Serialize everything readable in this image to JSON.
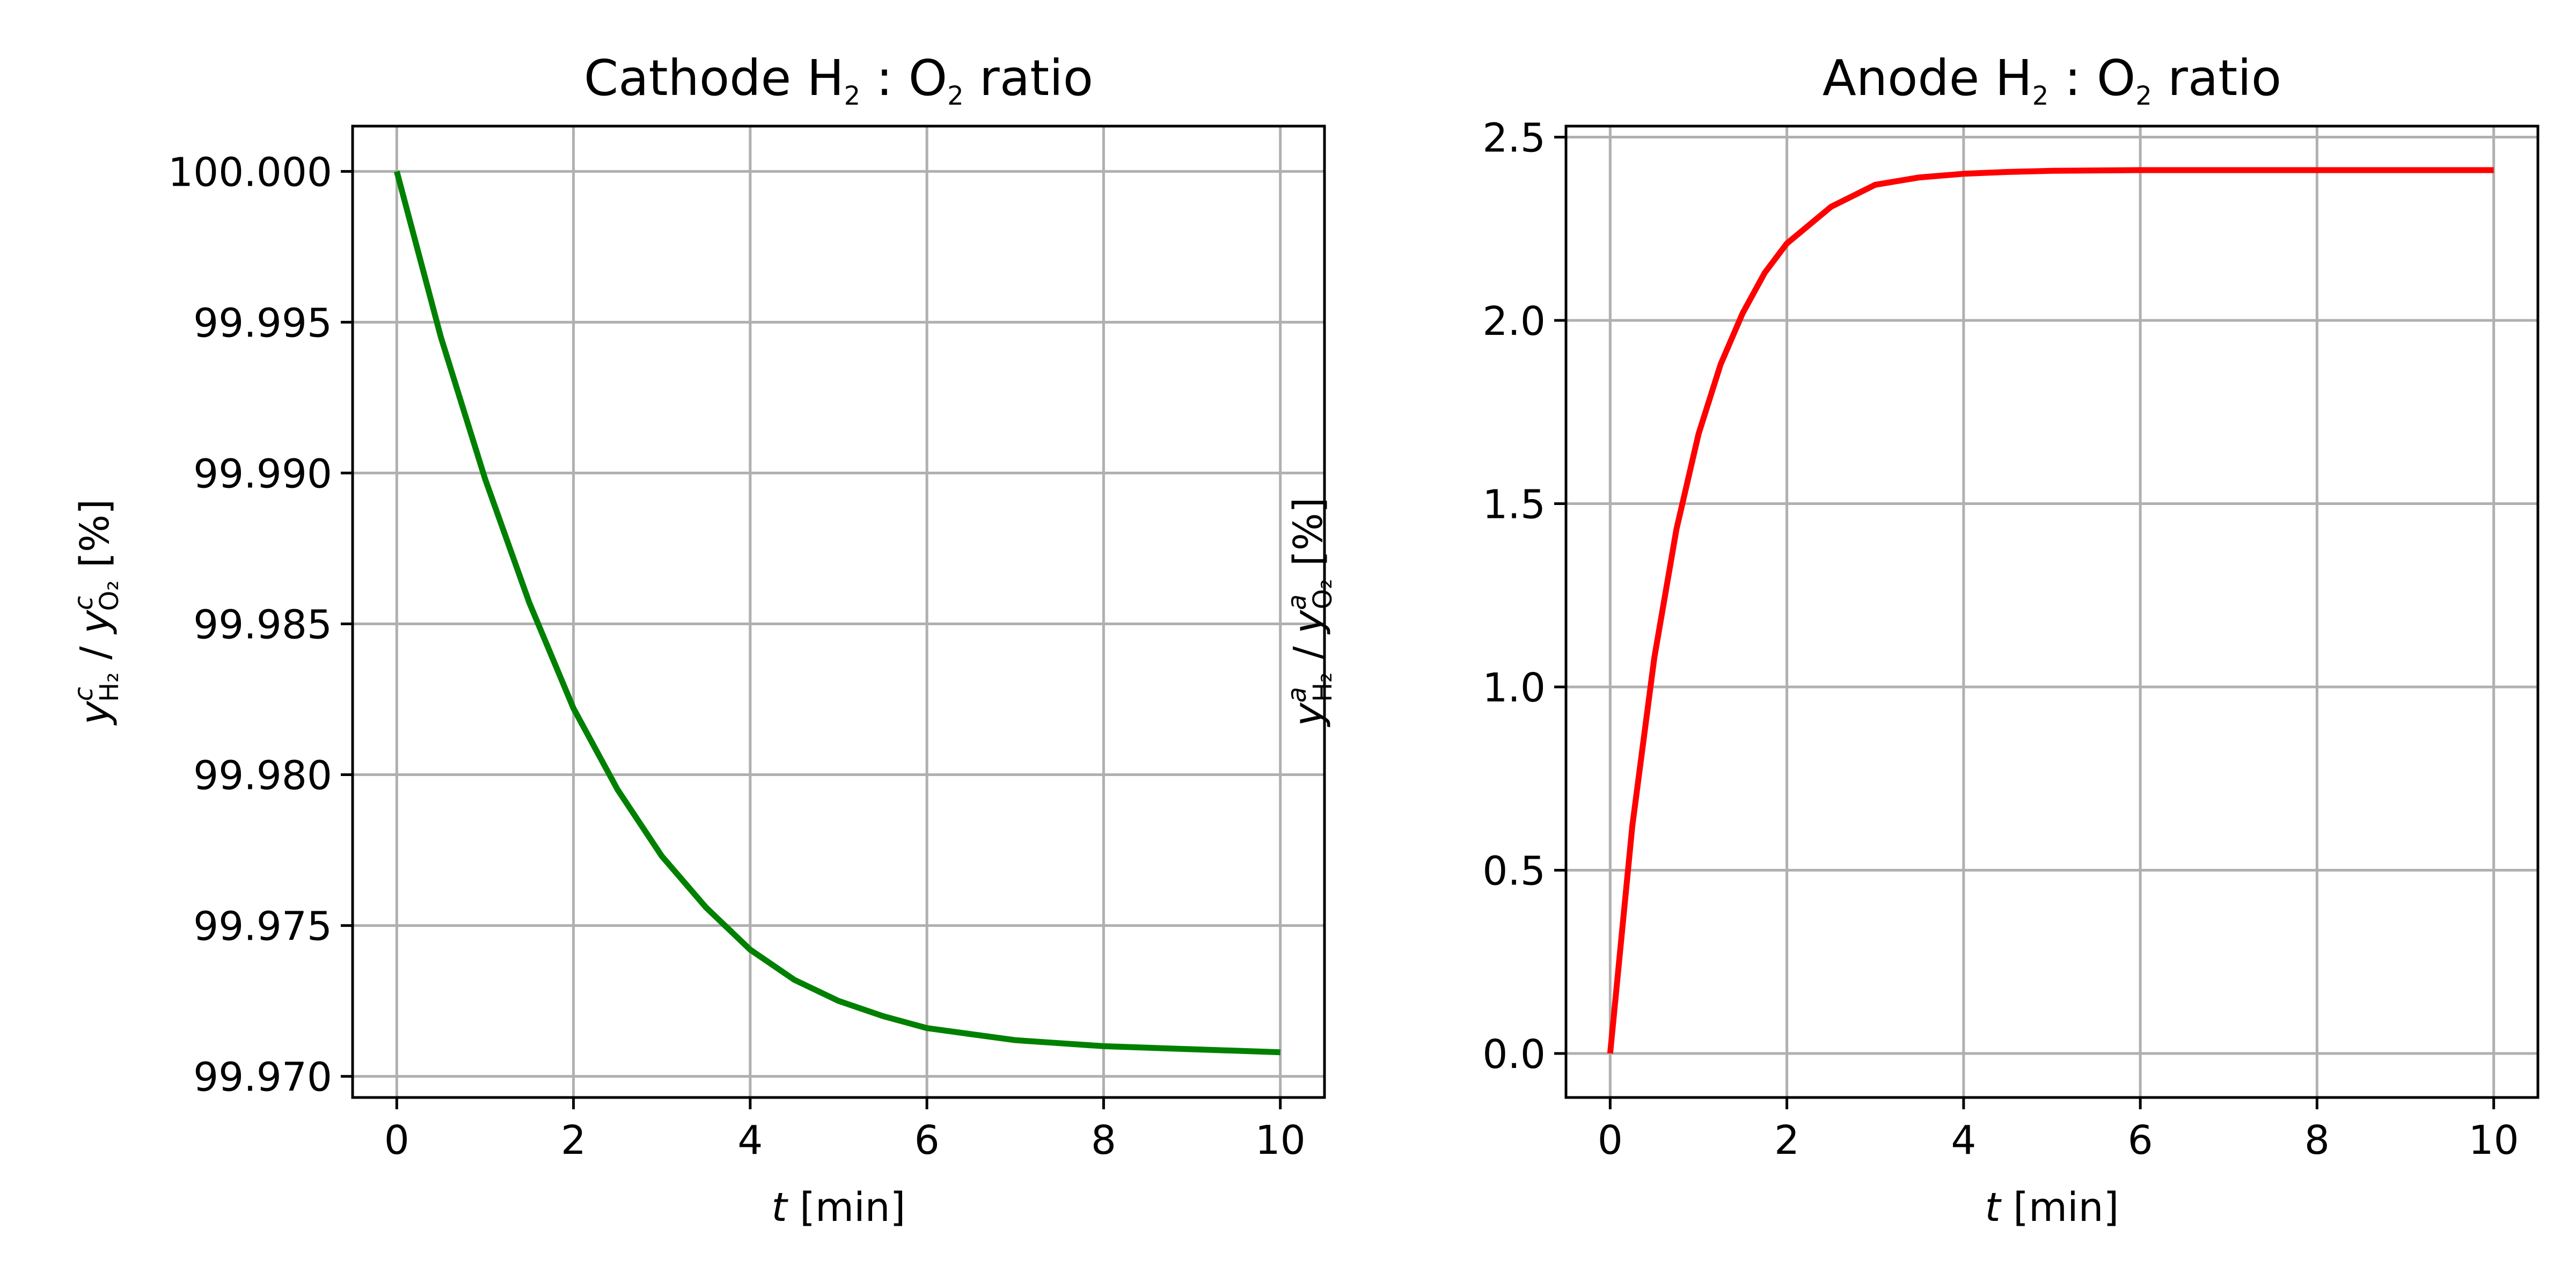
{
  "chart_data": [
    {
      "type": "line",
      "title": {
        "pre": "Cathode H",
        "sub1": "2",
        "mid": " : O",
        "sub2": "2",
        "post": " ratio"
      },
      "xlabel": {
        "italic": "t",
        "rest": " [min]"
      },
      "ylabel": {
        "var": "y",
        "sup": "c",
        "sub": "H₂",
        "sep": " / ",
        "var2": "y",
        "sup2": "c",
        "sub2": "O₂",
        "unit": "  [%]"
      },
      "xlim": [
        -0.5,
        10.5
      ],
      "ylim": [
        99.9693,
        100.0015
      ],
      "xticks": [
        0,
        2,
        4,
        6,
        8,
        10
      ],
      "xtick_labels": [
        "0",
        "2",
        "4",
        "6",
        "8",
        "10"
      ],
      "yticks": [
        99.97,
        99.975,
        99.98,
        99.985,
        99.99,
        99.995,
        100.0
      ],
      "ytick_labels": [
        "99.970",
        "99.975",
        "99.980",
        "99.985",
        "99.990",
        "99.995",
        "100.000"
      ],
      "grid": true,
      "color": "#008000",
      "series": [
        {
          "x": [
            0,
            0.5,
            1,
            1.5,
            2,
            2.5,
            3,
            3.5,
            4,
            4.5,
            5,
            5.5,
            6,
            6.5,
            7,
            7.5,
            8,
            8.5,
            9,
            9.5,
            10
          ],
          "y": [
            100.0,
            99.9945,
            99.9898,
            99.9857,
            99.9822,
            99.9795,
            99.9773,
            99.9756,
            99.9742,
            99.9732,
            99.9725,
            99.972,
            99.9716,
            99.9714,
            99.9712,
            99.9711,
            99.971,
            99.97095,
            99.9709,
            99.97085,
            99.9708
          ]
        }
      ]
    },
    {
      "type": "line",
      "title": {
        "pre": "Anode H",
        "sub1": "2",
        "mid": " : O",
        "sub2": "2",
        "post": " ratio"
      },
      "xlabel": {
        "italic": "t",
        "rest": " [min]"
      },
      "ylabel": {
        "var": "y",
        "sup": "a",
        "sub": "H₂",
        "sep": " / ",
        "var2": "y",
        "sup2": "a",
        "sub2": "O₂",
        "unit": "  [%]"
      },
      "xlim": [
        -0.5,
        10.5
      ],
      "ylim": [
        -0.12,
        2.53
      ],
      "xticks": [
        0,
        2,
        4,
        6,
        8,
        10
      ],
      "xtick_labels": [
        "0",
        "2",
        "4",
        "6",
        "8",
        "10"
      ],
      "yticks": [
        0.0,
        0.5,
        1.0,
        1.5,
        2.0,
        2.5
      ],
      "ytick_labels": [
        "0.0",
        "0.5",
        "1.0",
        "1.5",
        "2.0",
        "2.5"
      ],
      "grid": true,
      "color": "#ff0000",
      "series": [
        {
          "x": [
            0,
            0.25,
            0.5,
            0.75,
            1,
            1.25,
            1.5,
            1.75,
            2,
            2.5,
            3,
            3.5,
            4,
            4.5,
            5,
            6,
            7,
            8,
            9,
            10
          ],
          "y": [
            0.0,
            0.62,
            1.08,
            1.43,
            1.69,
            1.88,
            2.02,
            2.13,
            2.21,
            2.31,
            2.37,
            2.39,
            2.4,
            2.405,
            2.408,
            2.41,
            2.41,
            2.41,
            2.41,
            2.41
          ]
        }
      ]
    }
  ]
}
